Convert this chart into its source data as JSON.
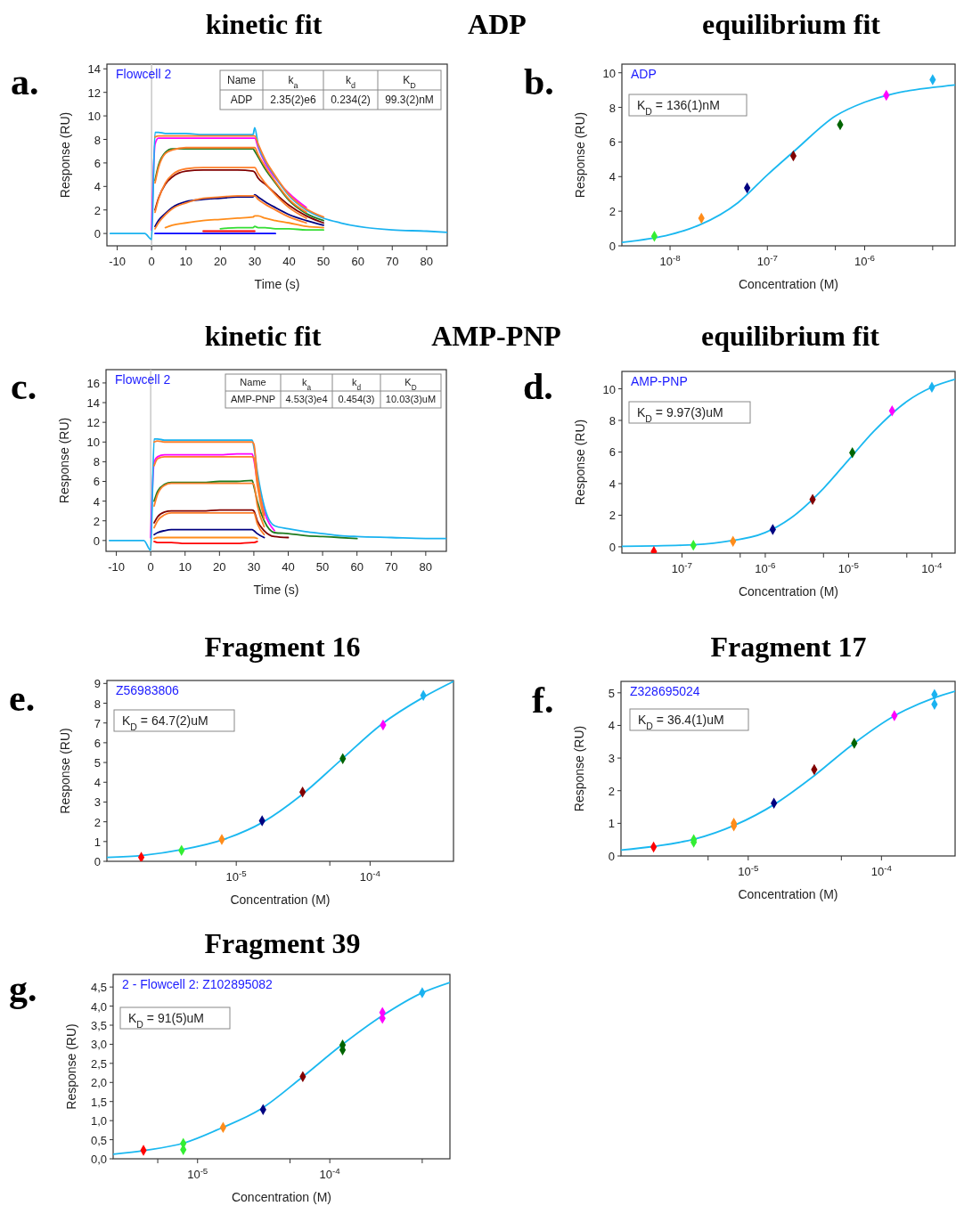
{
  "chart_data": [
    {
      "type": "line",
      "title": "kinetic fit",
      "subtitle": "Flowcell 2",
      "xlabel": "Time (s)",
      "ylabel": "Response (RU)",
      "xlim": [
        -13,
        86
      ],
      "ylim": [
        -1.05,
        14.4
      ],
      "xticks": [
        -10,
        0,
        10,
        20,
        30,
        40,
        50,
        60,
        70,
        80
      ],
      "yticks": [
        0,
        2,
        4,
        6,
        8,
        10,
        12,
        14
      ],
      "ref_lines": [
        {
          "axis": "x",
          "value": 0,
          "color": "#c8c8c8"
        }
      ],
      "annotations": [
        "a.",
        "ADP",
        "Name",
        "k$_{a}$",
        "k$_{d}$",
        "K$_{D}$",
        "ADP",
        "2.35(2)e6",
        "0.234(2)",
        "99.3(2)nM"
      ],
      "x": [
        -12,
        -2,
        0,
        1,
        2,
        4,
        6,
        10,
        15,
        20,
        25,
        29.5,
        30,
        31,
        33,
        36,
        40,
        45,
        50,
        55,
        60,
        70,
        80,
        86
      ],
      "series": [
        {
          "color": "#0000ff",
          "values": [
            null,
            null,
            null,
            0,
            0,
            0,
            0,
            0,
            0,
            0,
            0,
            0,
            0,
            0,
            0,
            0,
            null,
            null,
            null,
            null,
            null,
            null,
            null,
            null
          ]
        },
        {
          "color": "#ff0000",
          "values": [
            null,
            null,
            null,
            null,
            null,
            null,
            null,
            null,
            0.2,
            0.2,
            0.2,
            0.2,
            0.2,
            null,
            null,
            null,
            null,
            null,
            null,
            null,
            null,
            null,
            null,
            null
          ]
        },
        {
          "color": "#33dd33",
          "values": [
            null,
            null,
            null,
            null,
            null,
            null,
            null,
            null,
            null,
            0.4,
            0.5,
            0.5,
            0.6,
            0.5,
            0.5,
            0.4,
            0.4,
            0.3,
            0.3,
            null,
            null,
            null,
            null,
            null
          ]
        },
        {
          "color": "#ff8c1a",
          "values": [
            null,
            null,
            null,
            null,
            null,
            0.5,
            0.7,
            0.9,
            1.1,
            1.2,
            1.3,
            1.4,
            1.5,
            1.5,
            1.3,
            1.1,
            0.9,
            0.6,
            0.5,
            null,
            null,
            null,
            null,
            null
          ]
        },
        {
          "color": "#000080",
          "values": [
            null,
            null,
            null,
            0.6,
            1.1,
            1.7,
            2.2,
            2.7,
            2.9,
            3.0,
            3.1,
            3.1,
            3.3,
            3.1,
            2.7,
            2.2,
            1.6,
            1.1,
            0.7,
            null,
            null,
            null,
            null,
            null
          ]
        },
        {
          "color": "#800000",
          "values": [
            null,
            null,
            null,
            2.0,
            3.0,
            4.2,
            4.8,
            5.3,
            5.4,
            5.4,
            5.4,
            5.3,
            5.2,
            4.7,
            4.2,
            3.4,
            2.4,
            1.5,
            0.9,
            null,
            null,
            null,
            null,
            null
          ]
        },
        {
          "color": "#1e7a1e",
          "values": [
            null,
            null,
            null,
            4.5,
            5.8,
            6.9,
            7.2,
            7.2,
            7.2,
            7.2,
            7.2,
            7.2,
            7.0,
            6.5,
            5.5,
            4.3,
            2.8,
            1.7,
            1.1,
            null,
            null,
            null,
            null,
            null
          ]
        },
        {
          "color": "#ff00ff",
          "values": [
            null,
            null,
            0.3,
            7.6,
            8.1,
            8.1,
            8.1,
            8.1,
            8.1,
            8.1,
            8.1,
            8.1,
            8.1,
            7.3,
            6.0,
            4.7,
            3.4,
            2.2,
            null,
            null,
            null,
            null,
            null,
            null
          ]
        },
        {
          "color": "#1ab2f0",
          "values": [
            0,
            0,
            -0.5,
            8.6,
            8.6,
            8.5,
            8.5,
            8.5,
            8.4,
            8.4,
            8.4,
            8.4,
            9.0,
            7.5,
            6.2,
            4.8,
            3.2,
            2.0,
            1.3,
            0.9,
            0.6,
            0.3,
            0.2,
            0.1
          ]
        },
        {
          "color": "#ff7f2a",
          "values": [
            null,
            null,
            null,
            8.2,
            8.3,
            8.3,
            8.3,
            8.3,
            8.3,
            8.3,
            8.3,
            8.3,
            8.3,
            7.6,
            6.3,
            4.9,
            3.3,
            2.1,
            1.4,
            null,
            null,
            null,
            null,
            null
          ]
        },
        {
          "color": "#ff7f2a",
          "values": [
            null,
            null,
            null,
            4.3,
            5.6,
            6.8,
            7.1,
            7.3,
            7.3,
            7.3,
            7.3,
            7.3,
            7.3,
            6.7,
            5.7,
            4.4,
            2.9,
            1.8,
            null,
            null,
            null,
            null,
            null,
            null
          ]
        },
        {
          "color": "#ff7f2a",
          "values": [
            null,
            null,
            null,
            1.8,
            2.9,
            4.3,
            5.0,
            5.5,
            5.6,
            5.6,
            5.6,
            5.6,
            5.6,
            5.1,
            4.3,
            3.3,
            2.2,
            1.3,
            null,
            null,
            null,
            null,
            null,
            null
          ]
        },
        {
          "color": "#ff7f2a",
          "values": [
            null,
            null,
            null,
            0.4,
            0.9,
            1.6,
            2.1,
            2.6,
            3.0,
            3.1,
            3.2,
            3.2,
            3.2,
            2.9,
            2.5,
            2.0,
            1.4,
            0.9,
            null,
            null,
            null,
            null,
            null,
            null
          ]
        }
      ]
    },
    {
      "type": "scatter",
      "title": "equilibrium fit",
      "subtitle": "ADP",
      "xlabel": "Concentration (M)",
      "ylabel": "Response (RU)",
      "log": "x",
      "xlim": [
        3.2e-09,
        8.5e-06
      ],
      "ylim": [
        0,
        10.5
      ],
      "xticks": [
        {
          "value": 1e-08,
          "label": "10$^{-8}$"
        },
        {
          "value": 5e-08,
          "label": null
        },
        {
          "value": 1e-07,
          "label": "10$^{-7}$"
        },
        {
          "value": 5e-07,
          "label": null
        },
        {
          "value": 1e-06,
          "label": "10$^{-6}$"
        },
        {
          "value": 5e-06,
          "label": null
        }
      ],
      "yticks": [
        0,
        2,
        4,
        6,
        8,
        10
      ],
      "annotations": [
        "b.",
        "K$_{D}$ = 136(1)nM"
      ],
      "series": [
        {
          "type": "line",
          "color": "#1ab8f0",
          "x": [
            3.2e-09,
            1e-08,
            2e-08,
            5e-08,
            1e-07,
            2e-07,
            5e-07,
            1e-06,
            2e-06,
            5e-06,
            8.5e-06
          ],
          "values": [
            0.2,
            0.65,
            1.2,
            2.5,
            4.1,
            5.6,
            7.5,
            8.3,
            8.8,
            9.15,
            9.3
          ]
        },
        {
          "type": "scatter",
          "marker": "diamond",
          "x": [
            6.9e-09,
            2.1e-08,
            6.2e-08,
            1.85e-07,
            5.6e-07,
            1.67e-06,
            5e-06
          ],
          "values": [
            0.55,
            1.6,
            3.35,
            5.2,
            7.0,
            8.7,
            9.6
          ],
          "colors": [
            "#33ee33",
            "#ff8c1a",
            "#000080",
            "#800000",
            "#006400",
            "#ff00ff",
            "#1ab2f0"
          ]
        }
      ]
    },
    {
      "type": "line",
      "title": "kinetic fit",
      "subtitle": "Flowcell 2",
      "xlabel": "Time (s)",
      "ylabel": "Response (RU)",
      "xlim": [
        -13,
        86
      ],
      "ylim": [
        -1.1,
        17.35
      ],
      "xticks": [
        -10,
        0,
        10,
        20,
        30,
        40,
        50,
        60,
        70,
        80
      ],
      "yticks": [
        0,
        2,
        4,
        6,
        8,
        10,
        12,
        14,
        16
      ],
      "ref_lines": [
        {
          "axis": "x",
          "value": 0,
          "color": "#c8c8c8"
        }
      ],
      "annotations": [
        "c.",
        "AMP-PNP",
        "Name",
        "k$_{a}$",
        "k$_{d}$",
        "K$_{D}$",
        "AMP-PNP",
        "4.53(3)e4",
        "0.454(3)",
        "10.03(3)uM"
      ],
      "x": [
        -12,
        -2,
        0,
        1,
        2,
        4,
        6,
        10,
        15,
        20,
        25,
        29.5,
        30,
        31,
        33,
        36,
        40,
        45,
        50,
        55,
        60,
        70,
        80,
        86
      ],
      "series": [
        {
          "color": "#ff0000",
          "values": [
            null,
            null,
            null,
            -0.1,
            -0.2,
            -0.2,
            -0.2,
            -0.3,
            -0.3,
            -0.3,
            -0.3,
            -0.2,
            -0.2,
            -0.1,
            null,
            null,
            null,
            null,
            null,
            null,
            null,
            null,
            null,
            null
          ]
        },
        {
          "color": "#ff8c1a",
          "values": [
            null,
            null,
            null,
            0.2,
            0.3,
            0.3,
            0.3,
            0.3,
            0.3,
            0.3,
            0.3,
            0.3,
            0.3,
            0.2,
            null,
            null,
            null,
            null,
            null,
            null,
            null,
            null,
            null,
            null
          ]
        },
        {
          "color": "#000080",
          "values": [
            null,
            null,
            null,
            0.6,
            0.8,
            1.0,
            1.1,
            1.1,
            1.1,
            1.1,
            1.1,
            1.1,
            1.0,
            0.7,
            0.3,
            null,
            null,
            null,
            null,
            null,
            null,
            null,
            null,
            null
          ]
        },
        {
          "color": "#800000",
          "values": [
            null,
            null,
            null,
            1.8,
            2.4,
            2.9,
            3.0,
            3.0,
            3.0,
            3.1,
            3.1,
            3.1,
            3.0,
            2.0,
            1.0,
            0.4,
            0.3,
            null,
            null,
            null,
            null,
            null,
            null,
            null
          ]
        },
        {
          "color": "#1e7a1e",
          "values": [
            null,
            null,
            null,
            4.0,
            5.0,
            5.7,
            5.9,
            5.9,
            5.9,
            6.0,
            6.0,
            6.1,
            5.5,
            4.0,
            2.0,
            0.8,
            0.7,
            0.5,
            0.4,
            0.3,
            0.2,
            null,
            null,
            null
          ]
        },
        {
          "color": "#ff00ff",
          "values": [
            null,
            null,
            0.3,
            8.0,
            8.5,
            8.7,
            8.7,
            8.7,
            8.7,
            8.7,
            8.8,
            8.8,
            8.2,
            6.0,
            3.0,
            1.0,
            null,
            null,
            null,
            null,
            null,
            null,
            null,
            null
          ]
        },
        {
          "color": "#1ab2f0",
          "values": [
            0,
            0,
            -1.0,
            10.3,
            10.3,
            10.2,
            10.2,
            10.2,
            10.2,
            10.2,
            10.2,
            10.2,
            9.5,
            7.0,
            3.5,
            1.5,
            1.2,
            0.9,
            0.7,
            0.5,
            0.4,
            0.3,
            0.2,
            0.2
          ]
        },
        {
          "color": "#ff7f2a",
          "values": [
            null,
            null,
            null,
            10.0,
            10.1,
            10.0,
            10.0,
            10.0,
            10.0,
            10.0,
            10.0,
            10.0,
            9.8,
            6.5,
            2.6,
            null,
            null,
            null,
            null,
            null,
            null,
            null,
            null,
            null
          ]
        },
        {
          "color": "#ff7f2a",
          "values": [
            null,
            null,
            null,
            7.6,
            8.3,
            8.5,
            8.5,
            8.5,
            8.5,
            8.5,
            8.5,
            8.5,
            8.4,
            5.6,
            2.2,
            null,
            null,
            null,
            null,
            null,
            null,
            null,
            null,
            null
          ]
        },
        {
          "color": "#ff7f2a",
          "values": [
            null,
            null,
            null,
            3.5,
            4.7,
            5.6,
            5.8,
            5.8,
            5.8,
            5.8,
            5.8,
            5.8,
            5.7,
            3.6,
            1.4,
            null,
            null,
            null,
            null,
            null,
            null,
            null,
            null,
            null
          ]
        },
        {
          "color": "#ff7f2a",
          "values": [
            null,
            null,
            null,
            1.3,
            2.0,
            2.6,
            2.8,
            2.8,
            2.8,
            2.8,
            2.8,
            2.8,
            2.8,
            1.7,
            0.6,
            null,
            null,
            null,
            null,
            null,
            null,
            null,
            null,
            null
          ]
        }
      ]
    },
    {
      "type": "scatter",
      "title": "equilibrium fit",
      "subtitle": "AMP-PNP",
      "xlabel": "Concentration (M)",
      "ylabel": "Response (RU)",
      "log": "x",
      "xlim": [
        1.9e-08,
        0.00019
      ],
      "ylim": [
        -0.4,
        11.1
      ],
      "xticks": [
        {
          "value": 1e-07,
          "label": "10$^{-7}$"
        },
        {
          "value": 5e-07,
          "label": null
        },
        {
          "value": 1e-06,
          "label": "10$^{-6}$"
        },
        {
          "value": 5e-06,
          "label": null
        },
        {
          "value": 1e-05,
          "label": "10$^{-5}$"
        },
        {
          "value": 5e-05,
          "label": null
        },
        {
          "value": 0.0001,
          "label": "10$^{-4}$"
        }
      ],
      "yticks": [
        0,
        2,
        4,
        6,
        8,
        10
      ],
      "annotations": [
        "d.",
        "K$_{D}$ = 9.97(3)uM"
      ],
      "series": [
        {
          "type": "line",
          "color": "#1ab8f0",
          "x": [
            1.9e-08,
            1e-07,
            3e-07,
            1e-06,
            2e-06,
            5e-06,
            1e-05,
            2e-05,
            5e-05,
            0.0001,
            0.00019
          ],
          "values": [
            0.03,
            0.1,
            0.3,
            0.9,
            1.8,
            3.7,
            5.5,
            7.3,
            9.2,
            10.1,
            10.6
          ]
        },
        {
          "type": "scatter",
          "marker": "diamond",
          "x": [
            4.6e-08,
            1.37e-07,
            4.1e-07,
            1.23e-06,
            3.7e-06,
            1.11e-05,
            3.33e-05,
            0.0001
          ],
          "values": [
            -0.3,
            0.1,
            0.35,
            1.1,
            3.0,
            5.95,
            8.6,
            10.1
          ],
          "colors": [
            "#ff0000",
            "#33ee33",
            "#ff8c1a",
            "#000080",
            "#800000",
            "#006400",
            "#ff00ff",
            "#1ab2f0"
          ]
        }
      ]
    },
    {
      "type": "scatter",
      "title": "Fragment 16",
      "subtitle": "Z56983806",
      "xlabel": "Concentration (M)",
      "ylabel": "Response (RU)",
      "log": "x",
      "xlim": [
        1.08e-06,
        0.00042
      ],
      "ylim": [
        0,
        9.15
      ],
      "xticks": [
        {
          "value": 5e-06,
          "label": null
        },
        {
          "value": 1e-05,
          "label": "10$^{-5}$"
        },
        {
          "value": 5e-05,
          "label": null
        },
        {
          "value": 0.0001,
          "label": "10$^{-4}$"
        }
      ],
      "yticks": [
        0,
        1,
        2,
        3,
        4,
        5,
        6,
        7,
        8,
        9
      ],
      "annotations": [
        "e.",
        "K$_{D}$ = 64.7(2)uM"
      ],
      "series": [
        {
          "type": "line",
          "color": "#1ab8f0",
          "x": [
            1.08e-06,
            2e-06,
            4e-06,
            8e-06,
            1.6e-05,
            3e-05,
            6e-05,
            0.00012,
            0.00025,
            0.00042
          ],
          "values": [
            0.2,
            0.3,
            0.6,
            1.1,
            2.0,
            3.3,
            5.1,
            6.9,
            8.3,
            9.1
          ]
        },
        {
          "type": "scatter",
          "marker": "diamond",
          "x": [
            1.95e-06,
            3.9e-06,
            7.8e-06,
            1.56e-05,
            3.13e-05,
            6.25e-05,
            0.000125,
            0.00025
          ],
          "values": [
            0.2,
            0.55,
            1.1,
            2.05,
            3.5,
            5.2,
            6.9,
            8.4
          ],
          "colors": [
            "#ff0000",
            "#33ee33",
            "#ff8c1a",
            "#000080",
            "#800000",
            "#006400",
            "#ff00ff",
            "#1ab2f0"
          ]
        }
      ]
    },
    {
      "type": "scatter",
      "title": "Fragment 17",
      "subtitle": "Z328695024",
      "xlabel": "Concentration (M)",
      "ylabel": "Response (RU)",
      "log": "x",
      "xlim": [
        1.11e-06,
        0.000357
      ],
      "ylim": [
        0,
        5.35
      ],
      "xticks": [
        {
          "value": 5e-06,
          "label": null
        },
        {
          "value": 1e-05,
          "label": "10$^{-5}$"
        },
        {
          "value": 5e-05,
          "label": null
        },
        {
          "value": 0.0001,
          "label": "10$^{-4}$"
        }
      ],
      "yticks": [
        0,
        1,
        2,
        3,
        4,
        5
      ],
      "annotations": [
        "f.",
        "K$_{D}$ = 36.4(1)uM"
      ],
      "series": [
        {
          "type": "line",
          "color": "#1ab8f0",
          "x": [
            1.11e-06,
            2e-06,
            4e-06,
            8e-06,
            1.6e-05,
            3e-05,
            6e-05,
            0.00012,
            0.00025,
            0.000357
          ],
          "values": [
            0.18,
            0.3,
            0.52,
            0.95,
            1.6,
            2.4,
            3.4,
            4.25,
            4.85,
            5.05
          ]
        },
        {
          "type": "scatter",
          "marker": "diamond",
          "x": [
            1.95e-06,
            3.9e-06,
            3.9e-06,
            7.8e-06,
            7.8e-06,
            1.56e-05,
            3.13e-05,
            6.25e-05,
            0.000125,
            0.00025,
            0.00025
          ],
          "values": [
            0.27,
            0.5,
            0.42,
            1.0,
            0.92,
            1.62,
            2.65,
            3.45,
            4.3,
            4.95,
            4.65
          ],
          "colors": [
            "#ff0000",
            "#33ee33",
            "#33ee33",
            "#ff8c1a",
            "#ff8c1a",
            "#000080",
            "#800000",
            "#006400",
            "#ff00ff",
            "#1ab2f0",
            "#1ab2f0"
          ]
        }
      ]
    },
    {
      "type": "scatter",
      "title": "Fragment 39",
      "subtitle": "2 - Flowcell 2: Z102895082",
      "xlabel": "Concentration (M)",
      "ylabel": "Response (RU)",
      "log": "x",
      "xlim": [
        2.3e-06,
        0.00081
      ],
      "ylim": [
        0,
        4.83
      ],
      "xticks": [
        {
          "value": 5e-06,
          "label": null
        },
        {
          "value": 1e-05,
          "label": "10$^{-5}$"
        },
        {
          "value": 5e-05,
          "label": null
        },
        {
          "value": 0.0001,
          "label": "10$^{-4}$"
        },
        {
          "value": 0.0005,
          "label": null
        }
      ],
      "yticks": [
        {
          "value": 0,
          "label": "0,0"
        },
        {
          "value": 0.5,
          "label": "0,5"
        },
        {
          "value": 1,
          "label": "1,0"
        },
        {
          "value": 1.5,
          "label": "1,5"
        },
        {
          "value": 2,
          "label": "2,0"
        },
        {
          "value": 2.5,
          "label": "2,5"
        },
        {
          "value": 3,
          "label": "3,0"
        },
        {
          "value": 3.5,
          "label": "3,5"
        },
        {
          "value": 4,
          "label": "4,0"
        },
        {
          "value": 4.5,
          "label": "4,5"
        }
      ],
      "annotations": [
        "g.",
        "K$_{D}$ = 91(5)uM"
      ],
      "series": [
        {
          "type": "line",
          "color": "#1ab8f0",
          "x": [
            2.3e-06,
            4e-06,
            8e-06,
            1.5e-05,
            3e-05,
            6e-05,
            0.00012,
            0.00025,
            0.0005,
            0.00081
          ],
          "values": [
            0.12,
            0.22,
            0.42,
            0.8,
            1.3,
            2.1,
            2.95,
            3.75,
            4.35,
            4.62
          ]
        },
        {
          "type": "scatter",
          "marker": "diamond",
          "x": [
            3.9e-06,
            7.8e-06,
            7.8e-06,
            1.56e-05,
            3.13e-05,
            6.25e-05,
            0.000125,
            0.000125,
            0.00025,
            0.00025,
            0.0005
          ],
          "values": [
            0.22,
            0.4,
            0.24,
            0.82,
            1.29,
            2.15,
            2.98,
            2.85,
            3.83,
            3.68,
            4.35
          ],
          "colors": [
            "#ff0000",
            "#33ee33",
            "#33ee33",
            "#ff8c1a",
            "#000080",
            "#800000",
            "#006400",
            "#006400",
            "#ff00ff",
            "#ff00ff",
            "#1ab2f0"
          ]
        }
      ]
    }
  ]
}
